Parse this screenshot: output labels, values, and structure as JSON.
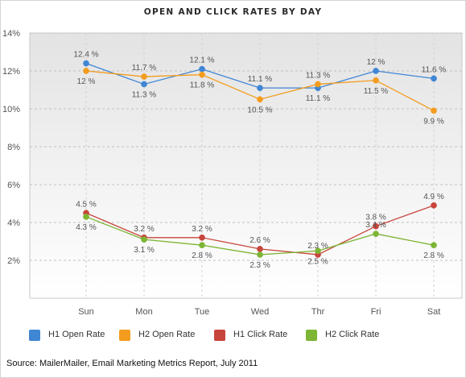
{
  "chart_data": {
    "type": "line",
    "title": "OPEN AND CLICK RATES BY DAY",
    "categories": [
      "Sun",
      "Mon",
      "Tue",
      "Wed",
      "Thr",
      "Fri",
      "Sat"
    ],
    "ylim": [
      0,
      14
    ],
    "y_ticks": [
      "2%",
      "4%",
      "6%",
      "8%",
      "10%",
      "12%",
      "14%"
    ],
    "y_tick_values": [
      2,
      4,
      6,
      8,
      10,
      12,
      14
    ],
    "grid": true,
    "legend_position": "bottom-left",
    "series": [
      {
        "name": "H1 Open Rate",
        "color": "#3f86d4",
        "values": [
          12.4,
          11.3,
          12.1,
          11.1,
          11.1,
          12.0,
          11.6
        ],
        "labels": [
          "12.4 %",
          "11.3 %",
          "12.1 %",
          "11.1 %",
          "11.1 %",
          "12 %",
          "11.6 %"
        ]
      },
      {
        "name": "H2 Open Rate",
        "color": "#f39c1e",
        "values": [
          12.0,
          11.7,
          11.8,
          10.5,
          11.3,
          11.5,
          9.9
        ],
        "labels": [
          "12 %",
          "11.7 %",
          "11.8 %",
          "10.5 %",
          "11.3 %",
          "11.5 %",
          "9.9 %"
        ]
      },
      {
        "name": "H1 Click Rate",
        "color": "#c8453b",
        "values": [
          4.5,
          3.2,
          3.2,
          2.6,
          2.3,
          3.8,
          4.9
        ],
        "labels": [
          "4.5 %",
          "3.2 %",
          "3.2 %",
          "2.6 %",
          "2.3 %",
          "3.8 %",
          "4.9 %"
        ]
      },
      {
        "name": "H2 Click Rate",
        "color": "#7db534",
        "values": [
          4.3,
          3.1,
          2.8,
          2.3,
          2.5,
          3.4,
          2.8
        ],
        "labels": [
          "4.3 %",
          "3.1 %",
          "2.8 %",
          "2.3 %",
          "2.5 %",
          "3.4 %",
          "2.8 %"
        ]
      }
    ]
  },
  "source_note": "Source: MailerMailer, Email Marketing Metrics Report, July 2011"
}
